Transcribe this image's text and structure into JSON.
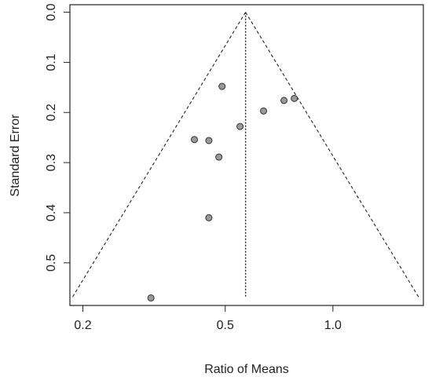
{
  "chart_data": {
    "type": "scatter",
    "subtype": "funnel-plot",
    "xlabel": "Ratio of Means",
    "ylabel": "Standard Error",
    "x_scale": "log",
    "xlim": [
      0.184,
      1.79
    ],
    "ylim": [
      0.585,
      -0.015
    ],
    "y_axis_reversed": true,
    "x_ticks": [
      0.2,
      0.5,
      1.0
    ],
    "x_tick_labels": [
      "0.2",
      "0.5",
      "1.0"
    ],
    "y_ticks": [
      0.0,
      0.1,
      0.2,
      0.3,
      0.4,
      0.5
    ],
    "y_tick_labels": [
      "0.0",
      "0.1",
      "0.2",
      "0.3",
      "0.4",
      "0.5"
    ],
    "summary_estimate": 0.57,
    "funnel_max_se": 0.57,
    "points": [
      {
        "x": 0.49,
        "y": 0.148
      },
      {
        "x": 0.55,
        "y": 0.228
      },
      {
        "x": 0.64,
        "y": 0.197
      },
      {
        "x": 0.73,
        "y": 0.176
      },
      {
        "x": 0.78,
        "y": 0.172
      },
      {
        "x": 0.41,
        "y": 0.254
      },
      {
        "x": 0.45,
        "y": 0.256
      },
      {
        "x": 0.48,
        "y": 0.289
      },
      {
        "x": 0.45,
        "y": 0.41
      },
      {
        "x": 0.31,
        "y": 0.57
      }
    ],
    "marker_fill": "#999999",
    "marker_stroke": "#333333",
    "grid": false,
    "legend": "none"
  }
}
